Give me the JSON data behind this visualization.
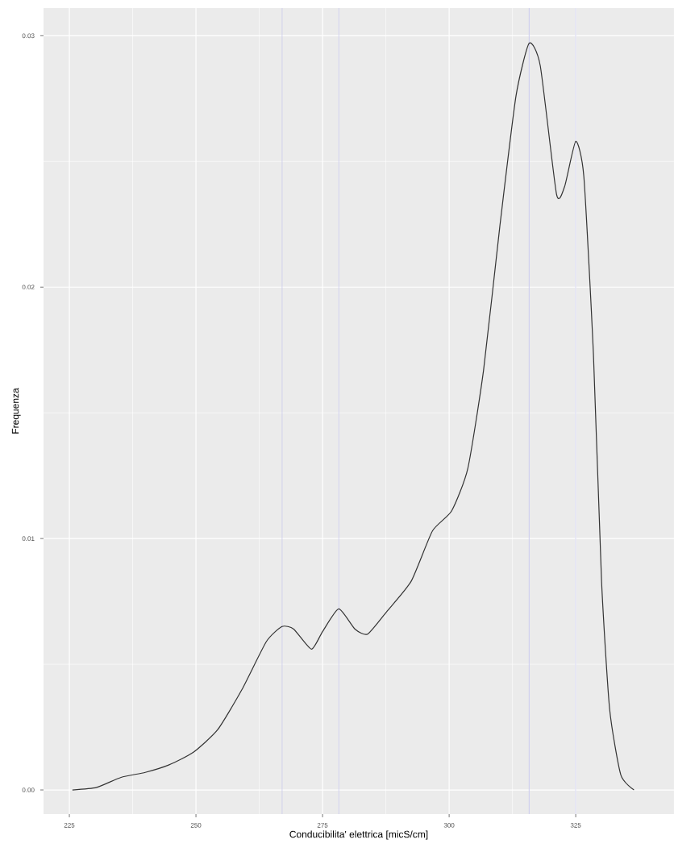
{
  "chart_data": {
    "type": "line",
    "xlabel": "Conducibilita' elettrica [micS/cm]",
    "ylabel": "Frequenza",
    "x": [
      225.6,
      230.4,
      235.2,
      240,
      244.7,
      249.5,
      254.3,
      259.1,
      263.9,
      267,
      269.3,
      272.8,
      275,
      278.2,
      281.4,
      283.9,
      287.7,
      292.5,
      296.7,
      300.5,
      303.7,
      306.8,
      310,
      313.2,
      315.8,
      318,
      321.2,
      322.8,
      325,
      326.6,
      328.5,
      330.1,
      331.7,
      333.9,
      336.5
    ],
    "series": [
      {
        "color": "#333333",
        "values": [
          0,
          0.0001,
          0.0005,
          0.0007,
          0.001,
          0.0015,
          0.0024,
          0.004,
          0.0059,
          0.0065,
          0.0064,
          0.0056,
          0.0063,
          0.0072,
          0.0064,
          0.0062,
          0.0071,
          0.0083,
          0.0103,
          0.0111,
          0.0128,
          0.0167,
          0.0224,
          0.0276,
          0.0297,
          0.0288,
          0.0237,
          0.024,
          0.0258,
          0.0244,
          0.0173,
          0.0083,
          0.0032,
          0.0006,
          0
        ]
      }
    ],
    "xlim": [
      219.9,
      344.4
    ],
    "ylim": [
      -0.00096,
      0.0311
    ],
    "xticks": [
      225,
      250,
      275,
      300,
      325
    ],
    "yticks": [
      {
        "value": 0,
        "label": "0.00"
      },
      {
        "value": 0.01,
        "label": "0.01"
      },
      {
        "value": 0.02,
        "label": "0.02"
      },
      {
        "value": 0.03,
        "label": "0.03"
      }
    ],
    "grid": true,
    "ref_lines": [
      {
        "axis": "x",
        "value": 267.0,
        "color": "#ccccee"
      },
      {
        "axis": "x",
        "value": 278.2,
        "color": "#ccccee"
      },
      {
        "axis": "x",
        "value": 315.8,
        "color": "#ccccee"
      },
      {
        "axis": "x",
        "value": 325.0,
        "color": "#ccccee"
      }
    ]
  }
}
